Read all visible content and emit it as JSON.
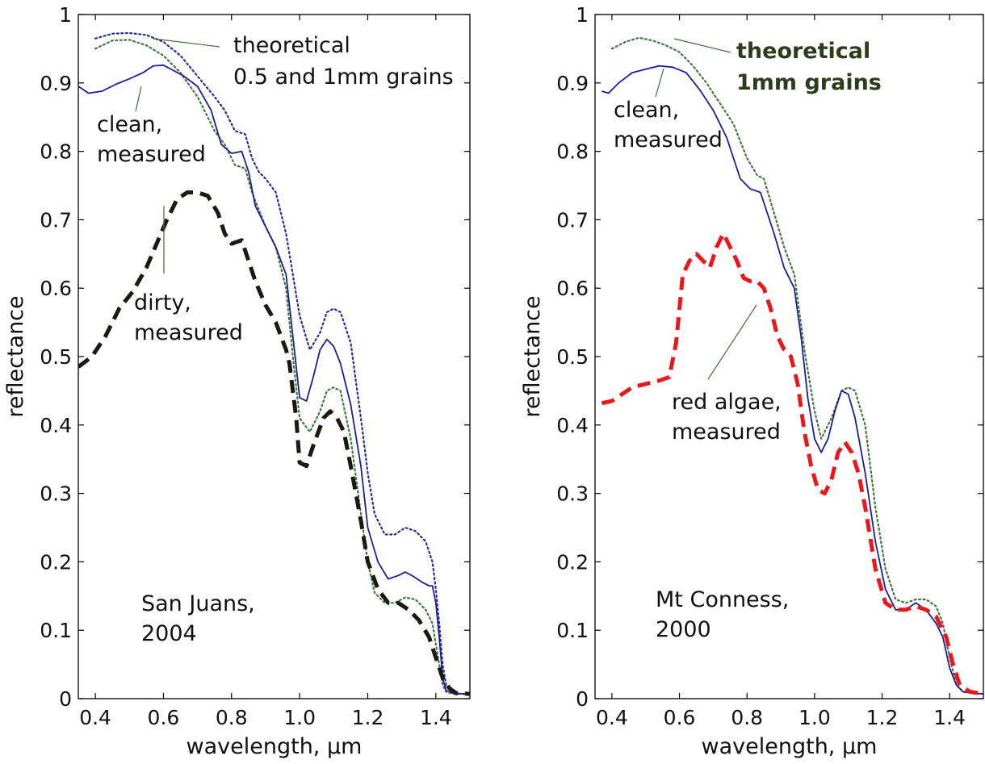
{
  "chart_data": [
    {
      "type": "line",
      "xlabel": "wavelength, µm",
      "ylabel": "reflectance",
      "xlim": [
        0.35,
        1.5
      ],
      "ylim": [
        0,
        1
      ],
      "x_ticks": [
        0.4,
        0.6,
        0.8,
        1.0,
        1.2,
        1.4
      ],
      "x_tick_labels": [
        "0.4",
        "0.6",
        "0.8",
        "1.0",
        "1.2",
        "1.4"
      ],
      "y_ticks": [
        0,
        0.1,
        0.2,
        0.3,
        0.4,
        0.5,
        0.6,
        0.7,
        0.8,
        0.9,
        1
      ],
      "y_tick_labels": [
        "0",
        "0.1",
        "0.2",
        "0.3",
        "0.4",
        "0.5",
        "0.6",
        "0.7",
        "0.8",
        "0.9",
        "1"
      ],
      "grid": false,
      "annotations": {
        "location": [
          "San Juans,",
          "2004"
        ],
        "theoretical": [
          "theoretical",
          "0.5 and 1mm grains"
        ],
        "clean": [
          "clean,",
          "measured"
        ],
        "dirty": [
          "dirty,",
          "measured"
        ]
      },
      "series": [
        {
          "key": "theoretical_05mm",
          "color": "#2b2ba0",
          "style": "dotted",
          "x": [
            0.4,
            0.45,
            0.5,
            0.55,
            0.6,
            0.65,
            0.7,
            0.75,
            0.78,
            0.81,
            0.84,
            0.86,
            0.88,
            0.9,
            0.93,
            0.96,
            0.98,
            1.0,
            1.03,
            1.06,
            1.08,
            1.1,
            1.12,
            1.15,
            1.18,
            1.2,
            1.22,
            1.25,
            1.28,
            1.31,
            1.34,
            1.37,
            1.39,
            1.4,
            1.41,
            1.42,
            1.43,
            1.45,
            1.48,
            1.5
          ],
          "y": [
            0.965,
            0.972,
            0.973,
            0.97,
            0.96,
            0.94,
            0.91,
            0.88,
            0.86,
            0.83,
            0.825,
            0.79,
            0.77,
            0.76,
            0.74,
            0.68,
            0.62,
            0.56,
            0.51,
            0.535,
            0.565,
            0.57,
            0.565,
            0.52,
            0.41,
            0.33,
            0.27,
            0.24,
            0.24,
            0.25,
            0.245,
            0.23,
            0.2,
            0.16,
            0.11,
            0.05,
            0.02,
            0.008,
            0.007,
            0.007
          ]
        },
        {
          "key": "theoretical_1mm",
          "color": "#3e7a3e",
          "style": "dotted",
          "x": [
            0.4,
            0.45,
            0.5,
            0.55,
            0.6,
            0.65,
            0.7,
            0.75,
            0.78,
            0.81,
            0.84,
            0.86,
            0.88,
            0.9,
            0.93,
            0.96,
            0.98,
            1.0,
            1.03,
            1.06,
            1.08,
            1.1,
            1.12,
            1.15,
            1.18,
            1.2,
            1.22,
            1.25,
            1.28,
            1.31,
            1.34,
            1.37,
            1.39,
            1.4,
            1.41,
            1.42,
            1.43,
            1.45,
            1.48,
            1.5
          ],
          "y": [
            0.95,
            0.962,
            0.963,
            0.955,
            0.94,
            0.915,
            0.88,
            0.83,
            0.81,
            0.78,
            0.775,
            0.74,
            0.715,
            0.69,
            0.66,
            0.6,
            0.5,
            0.41,
            0.39,
            0.42,
            0.45,
            0.455,
            0.45,
            0.38,
            0.27,
            0.2,
            0.155,
            0.14,
            0.14,
            0.148,
            0.145,
            0.13,
            0.11,
            0.08,
            0.05,
            0.02,
            0.01,
            0.007,
            0.007,
            0.007
          ]
        },
        {
          "key": "clean_measured",
          "color": "#1e1e9a",
          "style": "solid",
          "x": [
            0.35,
            0.38,
            0.42,
            0.46,
            0.5,
            0.54,
            0.57,
            0.6,
            0.63,
            0.66,
            0.7,
            0.74,
            0.77,
            0.8,
            0.83,
            0.85,
            0.87,
            0.9,
            0.93,
            0.96,
            0.98,
            1.0,
            1.02,
            1.04,
            1.06,
            1.08,
            1.1,
            1.12,
            1.15,
            1.18,
            1.2,
            1.23,
            1.26,
            1.29,
            1.31,
            1.33,
            1.36,
            1.38,
            1.39,
            1.4,
            1.41,
            1.42,
            1.43,
            1.45,
            1.48,
            1.5
          ],
          "y": [
            0.895,
            0.885,
            0.888,
            0.898,
            0.906,
            0.915,
            0.925,
            0.926,
            0.918,
            0.91,
            0.895,
            0.86,
            0.81,
            0.797,
            0.8,
            0.77,
            0.72,
            0.69,
            0.66,
            0.62,
            0.53,
            0.44,
            0.435,
            0.47,
            0.51,
            0.525,
            0.515,
            0.49,
            0.43,
            0.34,
            0.25,
            0.2,
            0.175,
            0.18,
            0.185,
            0.18,
            0.17,
            0.165,
            0.165,
            0.14,
            0.09,
            0.03,
            0.012,
            0.008,
            0.007,
            0.007
          ]
        },
        {
          "key": "dirty_measured",
          "color": "#1a1a10",
          "style": "dashed",
          "x": [
            0.35,
            0.39,
            0.43,
            0.47,
            0.51,
            0.55,
            0.58,
            0.61,
            0.64,
            0.67,
            0.7,
            0.73,
            0.76,
            0.78,
            0.8,
            0.83,
            0.85,
            0.87,
            0.9,
            0.93,
            0.96,
            0.97,
            0.99,
            1.0,
            1.02,
            1.04,
            1.07,
            1.09,
            1.11,
            1.13,
            1.15,
            1.18,
            1.2,
            1.23,
            1.26,
            1.29,
            1.32,
            1.35,
            1.38,
            1.4,
            1.42,
            1.44,
            1.46,
            1.5
          ],
          "y": [
            0.485,
            0.5,
            0.53,
            0.57,
            0.595,
            0.63,
            0.665,
            0.7,
            0.73,
            0.74,
            0.74,
            0.735,
            0.71,
            0.68,
            0.665,
            0.67,
            0.64,
            0.61,
            0.575,
            0.55,
            0.51,
            0.49,
            0.41,
            0.345,
            0.34,
            0.37,
            0.41,
            0.42,
            0.41,
            0.39,
            0.34,
            0.26,
            0.2,
            0.16,
            0.14,
            0.14,
            0.13,
            0.115,
            0.09,
            0.06,
            0.03,
            0.015,
            0.008,
            0.007
          ]
        }
      ]
    },
    {
      "type": "line",
      "xlabel": "wavelength, µm",
      "ylabel": "reflectance",
      "xlim": [
        0.35,
        1.5
      ],
      "ylim": [
        0,
        1
      ],
      "x_ticks": [
        0.4,
        0.6,
        0.8,
        1.0,
        1.2,
        1.4
      ],
      "x_tick_labels": [
        "0.4",
        "0.6",
        "0.8",
        "1.0",
        "1.2",
        "1.4"
      ],
      "y_ticks": [
        0,
        0.1,
        0.2,
        0.3,
        0.4,
        0.5,
        0.6,
        0.7,
        0.8,
        0.9,
        1
      ],
      "y_tick_labels": [
        "0",
        "0.1",
        "0.2",
        "0.3",
        "0.4",
        "0.5",
        "0.6",
        "0.7",
        "0.8",
        "0.9",
        "1"
      ],
      "grid": false,
      "annotations": {
        "location": [
          "Mt Conness,",
          "2000"
        ],
        "theoretical": [
          "theoretical",
          "1mm grains"
        ],
        "clean": [
          "clean,",
          "measured"
        ],
        "red_algae": [
          "red algae,",
          "measured"
        ]
      },
      "series": [
        {
          "key": "theoretical_1mm",
          "color": "#3e7a3e",
          "style": "dotted",
          "x": [
            0.4,
            0.44,
            0.48,
            0.52,
            0.56,
            0.6,
            0.64,
            0.68,
            0.72,
            0.76,
            0.8,
            0.83,
            0.85,
            0.88,
            0.91,
            0.94,
            0.97,
            1.0,
            1.02,
            1.05,
            1.08,
            1.1,
            1.12,
            1.15,
            1.18,
            1.21,
            1.24,
            1.27,
            1.3,
            1.33,
            1.36,
            1.38,
            1.4,
            1.42,
            1.44,
            1.47,
            1.5
          ],
          "y": [
            0.95,
            0.96,
            0.966,
            0.962,
            0.955,
            0.945,
            0.925,
            0.9,
            0.87,
            0.84,
            0.79,
            0.765,
            0.76,
            0.71,
            0.66,
            0.62,
            0.51,
            0.42,
            0.38,
            0.41,
            0.45,
            0.455,
            0.45,
            0.4,
            0.28,
            0.19,
            0.145,
            0.14,
            0.145,
            0.145,
            0.135,
            0.11,
            0.06,
            0.02,
            0.01,
            0.008,
            0.007
          ]
        },
        {
          "key": "clean_measured",
          "color": "#1e1e9a",
          "style": "solid",
          "x": [
            0.37,
            0.39,
            0.42,
            0.46,
            0.5,
            0.54,
            0.58,
            0.62,
            0.66,
            0.7,
            0.74,
            0.78,
            0.81,
            0.84,
            0.86,
            0.88,
            0.91,
            0.94,
            0.96,
            0.98,
            1.0,
            1.02,
            1.04,
            1.06,
            1.08,
            1.1,
            1.12,
            1.15,
            1.18,
            1.21,
            1.24,
            1.27,
            1.3,
            1.33,
            1.36,
            1.38,
            1.4,
            1.42,
            1.44,
            1.47,
            1.5
          ],
          "y": [
            0.888,
            0.885,
            0.9,
            0.915,
            0.92,
            0.925,
            0.923,
            0.915,
            0.89,
            0.86,
            0.82,
            0.76,
            0.745,
            0.74,
            0.71,
            0.68,
            0.63,
            0.6,
            0.53,
            0.44,
            0.38,
            0.36,
            0.38,
            0.42,
            0.45,
            0.445,
            0.41,
            0.33,
            0.23,
            0.16,
            0.13,
            0.13,
            0.14,
            0.13,
            0.11,
            0.09,
            0.045,
            0.02,
            0.01,
            0.008,
            0.007
          ]
        },
        {
          "key": "red_algae_measured",
          "color": "#e8191e",
          "style": "dashed",
          "x": [
            0.37,
            0.4,
            0.43,
            0.46,
            0.5,
            0.54,
            0.57,
            0.59,
            0.61,
            0.63,
            0.65,
            0.67,
            0.69,
            0.71,
            0.73,
            0.75,
            0.77,
            0.79,
            0.81,
            0.83,
            0.85,
            0.87,
            0.89,
            0.91,
            0.93,
            0.95,
            0.97,
            0.99,
            1.01,
            1.03,
            1.05,
            1.07,
            1.09,
            1.11,
            1.13,
            1.15,
            1.18,
            1.21,
            1.24,
            1.27,
            1.3,
            1.33,
            1.36,
            1.39,
            1.41,
            1.43,
            1.46,
            1.5
          ],
          "y": [
            0.432,
            0.435,
            0.445,
            0.455,
            0.46,
            0.465,
            0.47,
            0.52,
            0.62,
            0.64,
            0.65,
            0.64,
            0.63,
            0.66,
            0.68,
            0.66,
            0.64,
            0.615,
            0.61,
            0.61,
            0.6,
            0.57,
            0.53,
            0.51,
            0.5,
            0.46,
            0.39,
            0.34,
            0.305,
            0.3,
            0.32,
            0.36,
            0.375,
            0.36,
            0.33,
            0.28,
            0.19,
            0.14,
            0.13,
            0.13,
            0.135,
            0.13,
            0.12,
            0.09,
            0.05,
            0.02,
            0.01,
            0.007
          ]
        }
      ]
    }
  ]
}
